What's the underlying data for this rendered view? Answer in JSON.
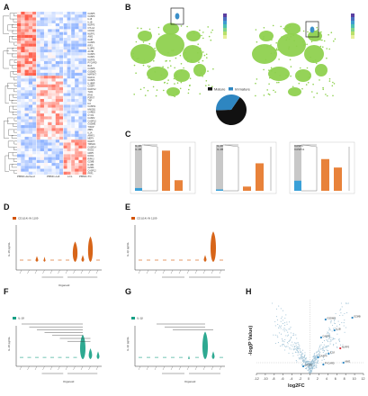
{
  "figure": {
    "panels": [
      "A",
      "B",
      "C",
      "D",
      "E",
      "F",
      "G",
      "H"
    ]
  },
  "panel_a": {
    "column_groups": [
      "PBMC-derived",
      "PBMC-cell",
      "LCL",
      "PBMC-TC"
    ],
    "row_labels": [
      "CASP5",
      "CASP9",
      "IL18",
      "IL1B",
      "NLRP3",
      "CTLA4",
      "CD160",
      "NLRP1",
      "AIM2",
      "NAIP",
      "CASP4",
      "IRF3",
      "IL18R1",
      "ACHR",
      "CASP3",
      "CASP1",
      "NLRP6",
      "PYCARD",
      "BAX",
      "CASP8",
      "GSDMD",
      "MAP3K7",
      "NLRC4",
      "CASP6",
      "IL18BP",
      "CASP7",
      "NLRP12",
      "TLR4",
      "IFNG",
      "P2RX7",
      "TNF",
      "IL6",
      "CASP11",
      "HMGB1",
      "CARD8",
      "CYCS",
      "CASP2",
      "CASP10",
      "GSDME",
      "TXNIP",
      "ZBP1",
      "IL1A",
      "APAF1",
      "MEFV",
      "NLRP7",
      "TRIM21",
      "CASP14",
      "NOD2",
      "GBP5",
      "NOD1",
      "RIPK3",
      "GZMB",
      "IL1RN",
      "GZMA",
      "CASP12",
      "PRF1"
    ]
  },
  "panel_b": {
    "legend": [
      "Mature",
      "Immature"
    ],
    "pie": {
      "mature_fraction": 0.65,
      "immature_fraction": 0.35
    },
    "colors": {
      "mature": "#111111",
      "immature": "#2e86c1",
      "umap": "#8fd14f",
      "highlight": "#3a8fc9"
    }
  },
  "panel_c": {
    "legends": [
      [
        "IL-18",
        "IL-1B"
      ],
      [
        "IL-18",
        "IL-1B"
      ],
      [
        "CASP1",
        "CASP11"
      ]
    ]
  },
  "panel_d": {
    "legend": "CD1(14) IN 1109",
    "ylabel": "IL-18 pg/mL",
    "xlabel": "Organoid"
  },
  "panel_e": {
    "legend": "CD1(14) IN 1109",
    "ylabel": "IL-1β pg/mL"
  },
  "panel_f": {
    "legend": "IL-18",
    "ylabel": "IL-18 pg/mL",
    "xlabel": "Organoid"
  },
  "panel_g": {
    "legend": "IL-1β",
    "ylabel": "IL-1β pg/mL",
    "xlabel": "Organoid"
  },
  "panel_h": {
    "chart_data": {
      "type": "scatter",
      "title": "",
      "xlabel": "log2FC",
      "ylabel": "-log(P Value)",
      "xlim": [
        -12,
        12
      ],
      "x_ticks": [
        "-12",
        "-10",
        "-8",
        "-6",
        "-4",
        "-2",
        "0",
        "2",
        "4",
        "6",
        "8",
        "10",
        "12"
      ],
      "y_ticks": [],
      "highlight_labels": [
        "GSDMD",
        "IL1B",
        "CASP1",
        "NLRP3",
        "IL18",
        "CASP4",
        "AIM2",
        "PYCARD",
        "CASP5",
        "GZMB"
      ],
      "colors": {
        "points": "#9fc2d6",
        "highlight": "#2e86c1",
        "red": "#e0323e"
      }
    }
  }
}
